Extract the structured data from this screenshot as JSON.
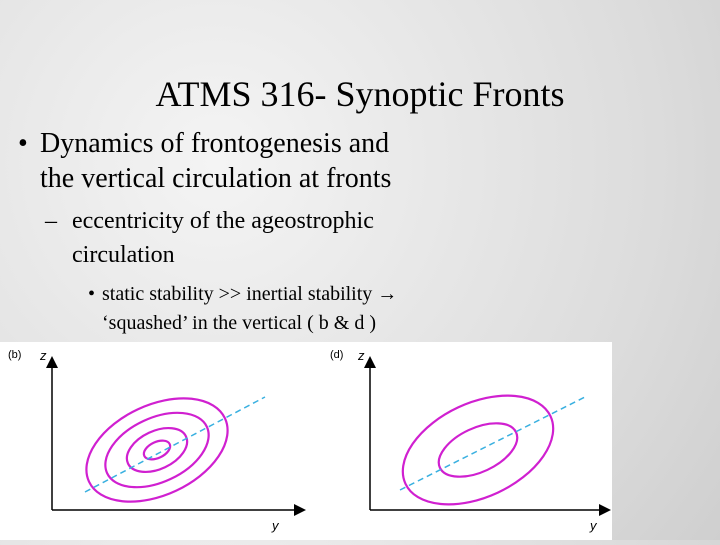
{
  "title": "ATMS 316- Synoptic Fronts",
  "bullets": [
    {
      "marker": "•",
      "lines": [
        "Dynamics of frontogenesis and",
        "the vertical circulation at fronts"
      ]
    },
    {
      "marker": "–",
      "lines": [
        "eccentricity of the ageostrophic",
        "circulation"
      ]
    },
    {
      "marker": "•",
      "lines": [
        "static stability >> inertial stability →",
        "‘squashed’ in the vertical ( b & d )"
      ]
    }
  ],
  "figure": {
    "panels": [
      {
        "label": "(b)",
        "y_axis": "z",
        "x_axis": "y"
      },
      {
        "label": "(d)",
        "y_axis": "z",
        "x_axis": "y"
      }
    ]
  }
}
